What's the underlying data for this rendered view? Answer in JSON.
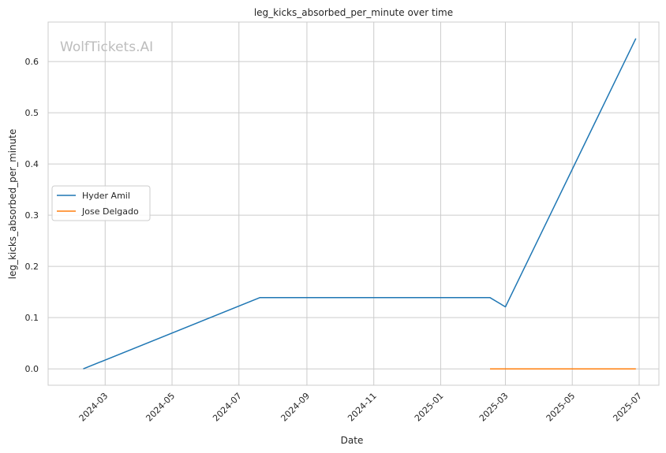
{
  "chart_data": {
    "type": "line",
    "title": "leg_kicks_absorbed_per_minute over time",
    "xlabel": "Date",
    "ylabel": "leg_kicks_absorbed_per_minute",
    "watermark": "WolfTickets.AI",
    "x_ticks": [
      "2024-03",
      "2024-05",
      "2024-07",
      "2024-09",
      "2024-11",
      "2025-01",
      "2025-03",
      "2025-05",
      "2025-07"
    ],
    "y_ticks": [
      "0.0",
      "0.1",
      "0.2",
      "0.3",
      "0.4",
      "0.5",
      "0.6"
    ],
    "xlim": [
      "2024-01-09",
      "2025-07-19"
    ],
    "ylim": [
      -0.032,
      0.677
    ],
    "grid": true,
    "legend_position": "center-left",
    "series": [
      {
        "name": "Hyder Amil",
        "color": "#1f77b4",
        "points": [
          {
            "x": "2024-02-10",
            "y": 0.0
          },
          {
            "x": "2024-07-20",
            "y": 0.139
          },
          {
            "x": "2025-02-15",
            "y": 0.139
          },
          {
            "x": "2025-03-01",
            "y": 0.121
          },
          {
            "x": "2025-06-28",
            "y": 0.645
          }
        ]
      },
      {
        "name": "Jose Delgado",
        "color": "#ff7f0e",
        "points": [
          {
            "x": "2025-02-15",
            "y": 0.0
          },
          {
            "x": "2025-06-28",
            "y": 0.0
          }
        ]
      }
    ]
  }
}
